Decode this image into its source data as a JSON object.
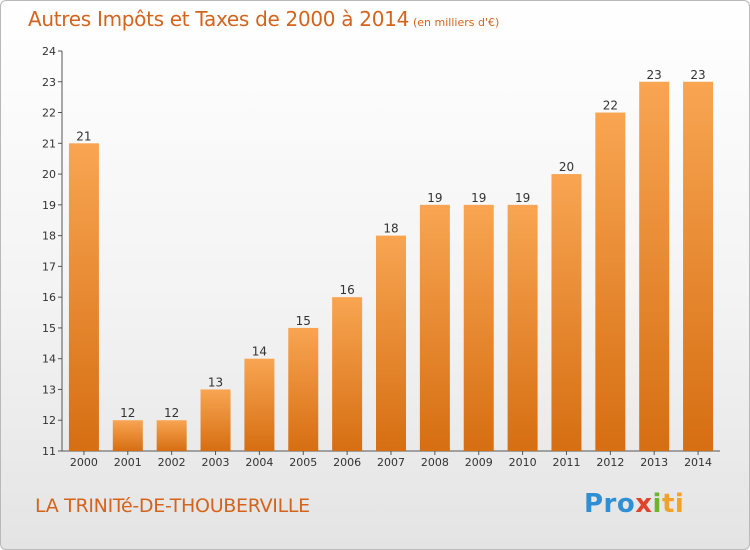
{
  "chart_data": {
    "type": "bar",
    "title": "Autres Impôts et Taxes de 2000 à 2014",
    "subtitle": "(en milliers d'€)",
    "categories": [
      "2000",
      "2001",
      "2002",
      "2003",
      "2004",
      "2005",
      "2006",
      "2007",
      "2008",
      "2009",
      "2010",
      "2011",
      "2012",
      "2013",
      "2014"
    ],
    "values": [
      21,
      12,
      12,
      13,
      14,
      15,
      16,
      18,
      19,
      19,
      19,
      20,
      22,
      23,
      23
    ],
    "ylim": [
      11,
      24
    ],
    "yticks": [
      "11",
      "12",
      "13",
      "14",
      "15",
      "16",
      "17",
      "18",
      "19",
      "20",
      "21",
      "22",
      "23",
      "24"
    ],
    "xlabel": "",
    "ylabel": "",
    "grid": false,
    "colors": {
      "bar_light": "#f8a552",
      "bar_dark": "#d66e12",
      "accent": "#d4631c"
    }
  },
  "footer": {
    "location": "LA TRINITé-DE-THOUBERVILLE",
    "logo_parts": [
      "Pro",
      "x",
      "i",
      "ti"
    ]
  }
}
